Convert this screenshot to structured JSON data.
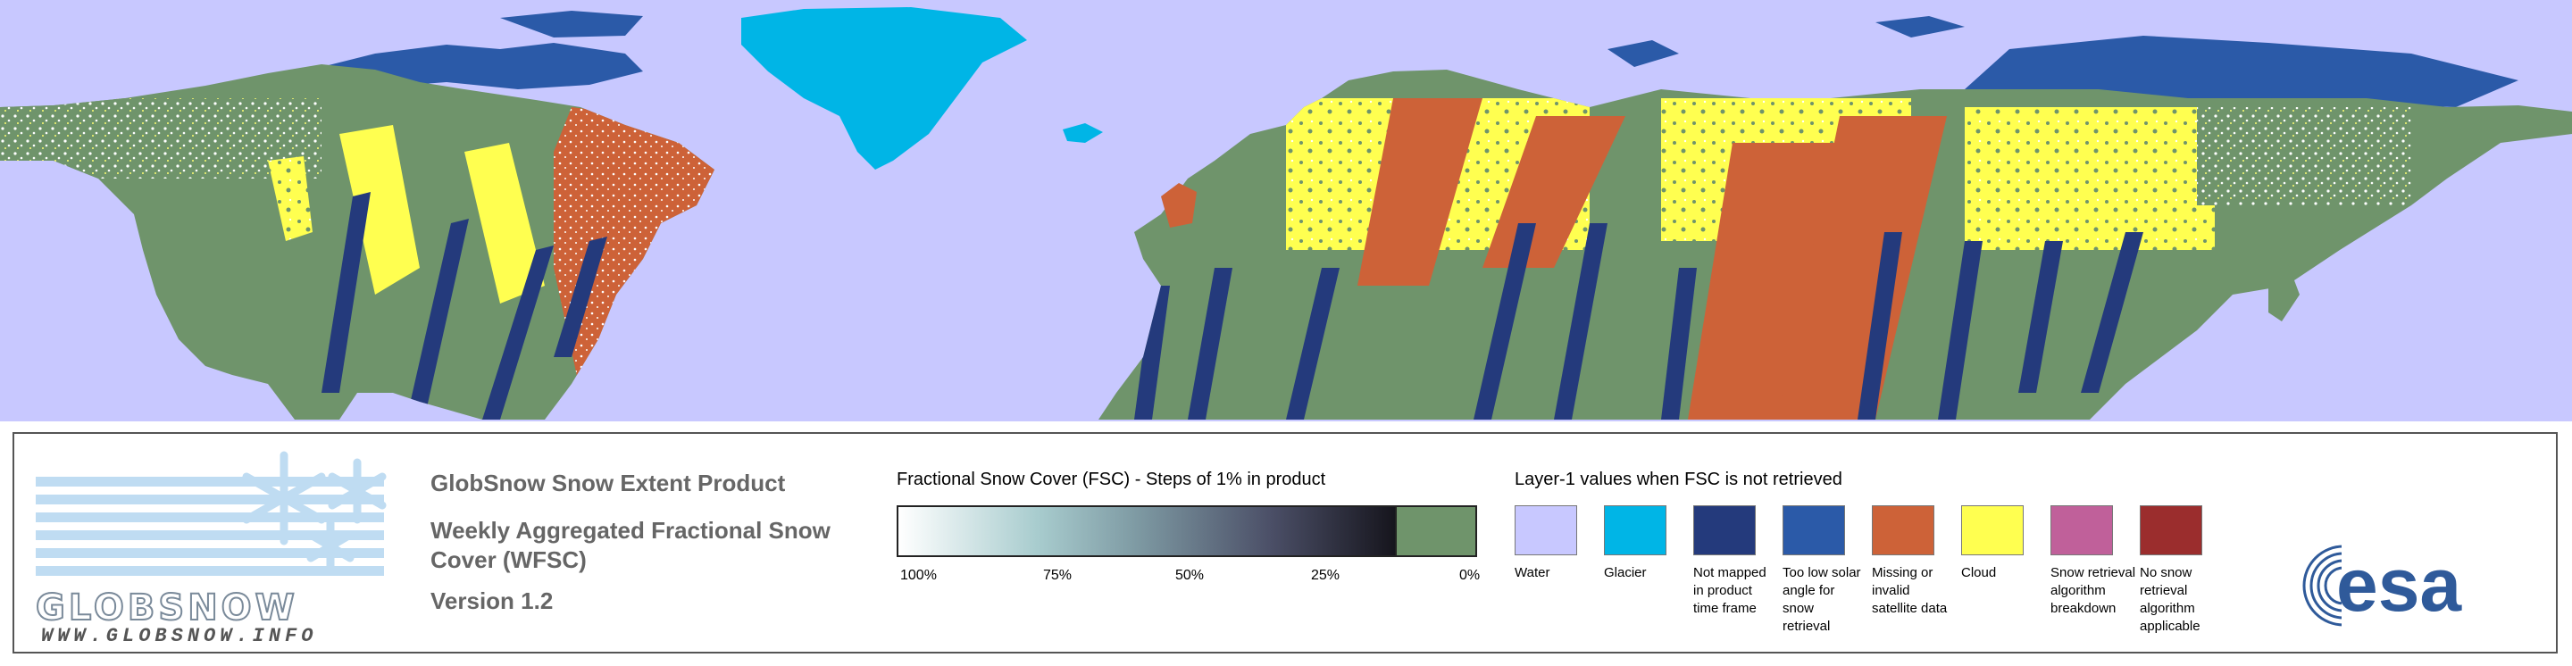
{
  "map": {
    "colors": {
      "water": "#c8c8ff",
      "glacier": "#00b5e6",
      "not_mapped": "#243a7c",
      "low_solar": "#2b5aa8",
      "missing": "#cd6238",
      "cloud": "#ffff50",
      "snow_free": "#6f946b",
      "snow": "#ffffff"
    }
  },
  "logo": {
    "wordmark": "GLOBSNOW",
    "url": "WWW.GLOBSNOW.INFO"
  },
  "product": {
    "line1": "GlobSnow Snow Extent Product",
    "line2": "Weekly Aggregated Fractional Snow Cover (WFSC)",
    "line3": "Version 1.2"
  },
  "fsc": {
    "heading": "Fractional Snow Cover (FSC) - Steps of 1% in product",
    "ticks": [
      "100%",
      "75%",
      "50%",
      "25%",
      "0%"
    ]
  },
  "layer1": {
    "heading": "Layer-1 values when FSC is not retrieved",
    "items": [
      {
        "label": "Water",
        "color": "#c8c8ff"
      },
      {
        "label": "Glacier",
        "color": "#00b5e6"
      },
      {
        "label": "Not mapped in product time frame",
        "color": "#243a7c"
      },
      {
        "label": "Too low solar angle for snow retrieval",
        "color": "#2b5aa8"
      },
      {
        "label": "Missing or invalid satellite data",
        "color": "#cd6238"
      },
      {
        "label": "Cloud",
        "color": "#ffff50"
      },
      {
        "label": "Snow retrieval algorithm breakdown",
        "color": "#c0609a"
      },
      {
        "label": "No snow retrieval algorithm applicable",
        "color": "#9b2d2d"
      }
    ]
  },
  "esa": {
    "wordmark": "esa"
  }
}
